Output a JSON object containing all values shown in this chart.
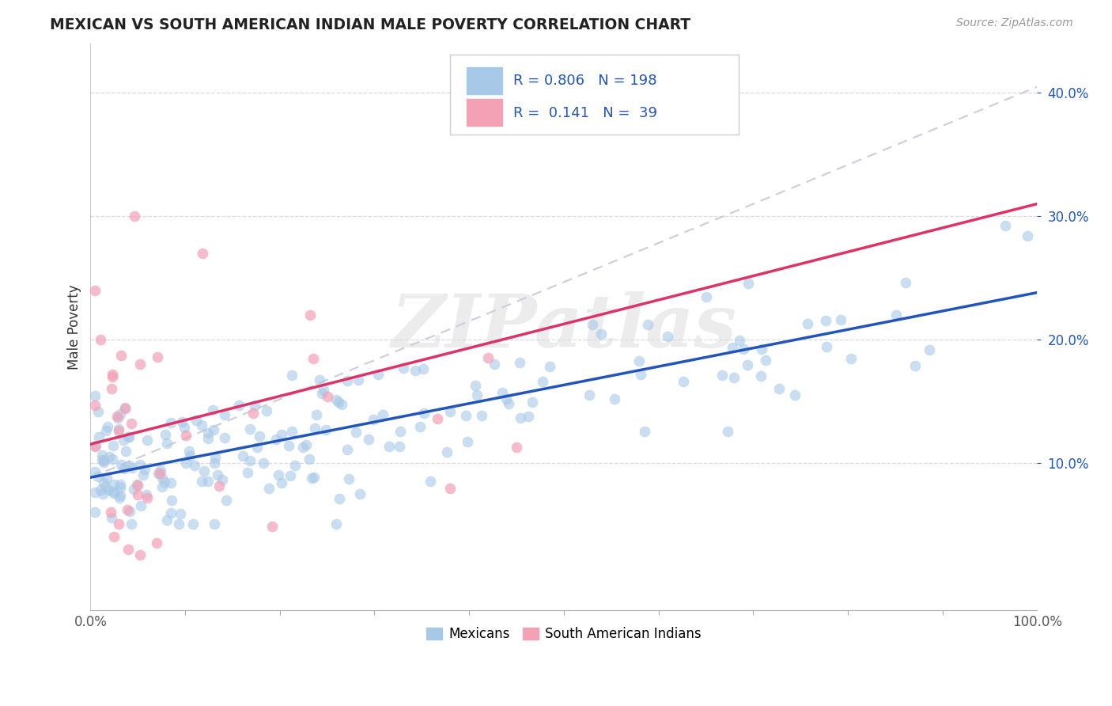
{
  "title": "MEXICAN VS SOUTH AMERICAN INDIAN MALE POVERTY CORRELATION CHART",
  "source_text": "Source: ZipAtlas.com",
  "ylabel": "Male Poverty",
  "legend_label_1": "Mexicans",
  "legend_label_2": "South American Indians",
  "R1": "0.806",
  "N1": "198",
  "R2": "0.141",
  "N2": "39",
  "color_blue": "#a8c8e8",
  "color_pink": "#f4a0b5",
  "line_color_blue": "#2255bb",
  "line_color_pink": "#dd3366",
  "line_color_dashed": "#ccccdd",
  "bg_color": "#ffffff",
  "grid_color": "#d8d8e8",
  "title_color": "#222222",
  "source_color": "#999999",
  "rn_color": "#2255bb",
  "xlim": [
    0.0,
    1.0
  ],
  "ylim": [
    -0.02,
    0.44
  ],
  "xtick_left": 0.0,
  "xtick_right": 1.0,
  "yticks": [
    0.1,
    0.2,
    0.3,
    0.4
  ],
  "blue_trend_x0": 0.0,
  "blue_trend_x1": 1.0,
  "blue_trend_y0": 0.088,
  "blue_trend_y1": 0.238,
  "pink_trend_x0": 0.0,
  "pink_trend_x1": 1.0,
  "pink_trend_y0": 0.115,
  "pink_trend_y1": 0.31,
  "dashed_trend_x0": 0.0,
  "dashed_trend_x1": 1.0,
  "dashed_trend_y0": 0.088,
  "dashed_trend_y1": 0.405,
  "watermark": "ZIPatlas",
  "seed": 77
}
